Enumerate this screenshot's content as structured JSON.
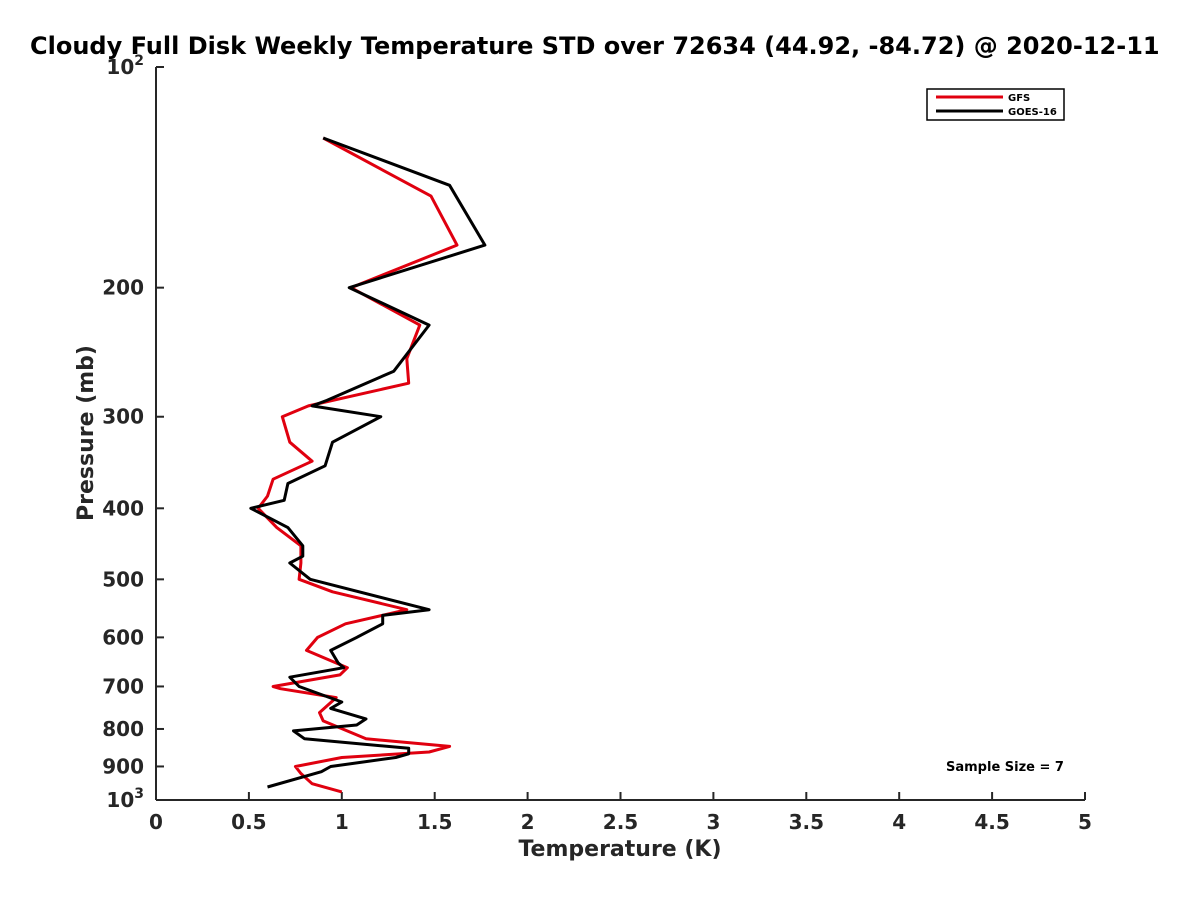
{
  "chart_data": {
    "type": "line",
    "title": "Cloudy Full Disk Weekly Temperature STD over 72634 (44.92, -84.72) @ 2020-12-11",
    "xlabel": "Temperature (K)",
    "ylabel": "Pressure (mb)",
    "xlim": [
      0,
      5
    ],
    "ylim": [
      100,
      1000
    ],
    "y_scale": "log",
    "y_reversed": true,
    "x_ticks": [
      "0",
      "0.5",
      "1",
      "1.5",
      "2",
      "2.5",
      "3",
      "3.5",
      "4",
      "4.5",
      "5"
    ],
    "y_ticks": [
      {
        "value": 100,
        "base": "10",
        "exp": "2"
      },
      {
        "value": 200,
        "label": "200"
      },
      {
        "value": 300,
        "label": "300"
      },
      {
        "value": 400,
        "label": "400"
      },
      {
        "value": 500,
        "label": "500"
      },
      {
        "value": 600,
        "label": "600"
      },
      {
        "value": 700,
        "label": "700"
      },
      {
        "value": 800,
        "label": "800"
      },
      {
        "value": 900,
        "label": "900"
      },
      {
        "value": 1000,
        "base": "10",
        "exp": "3"
      }
    ],
    "legend": {
      "position": "top-right",
      "entries": [
        "GFS",
        "GOES-16"
      ]
    },
    "annotation": "Sample Size = 7",
    "grid": false,
    "series": [
      {
        "name": "GFS",
        "color": "#e0000f",
        "points": [
          [
            0.9,
            125
          ],
          [
            1.48,
            150
          ],
          [
            1.62,
            175
          ],
          [
            1.05,
            200
          ],
          [
            1.42,
            225
          ],
          [
            1.35,
            250
          ],
          [
            1.36,
            270
          ],
          [
            0.82,
            290
          ],
          [
            0.68,
            300
          ],
          [
            0.72,
            325
          ],
          [
            0.84,
            345
          ],
          [
            0.63,
            365
          ],
          [
            0.6,
            385
          ],
          [
            0.55,
            400
          ],
          [
            0.65,
            425
          ],
          [
            0.78,
            450
          ],
          [
            0.78,
            475
          ],
          [
            0.77,
            500
          ],
          [
            0.95,
            520
          ],
          [
            1.35,
            550
          ],
          [
            1.02,
            575
          ],
          [
            0.87,
            600
          ],
          [
            0.81,
            625
          ],
          [
            1.03,
            660
          ],
          [
            0.99,
            675
          ],
          [
            0.63,
            700
          ],
          [
            0.67,
            705
          ],
          [
            0.97,
            725
          ],
          [
            0.88,
            760
          ],
          [
            0.9,
            780
          ],
          [
            1.13,
            825
          ],
          [
            1.58,
            845
          ],
          [
            1.47,
            860
          ],
          [
            1.0,
            875
          ],
          [
            0.75,
            900
          ],
          [
            0.78,
            920
          ],
          [
            0.84,
            950
          ],
          [
            1.0,
            975
          ]
        ]
      },
      {
        "name": "GOES-16",
        "color": "#000000",
        "points": [
          [
            0.9,
            125
          ],
          [
            1.58,
            145
          ],
          [
            1.77,
            175
          ],
          [
            1.04,
            200
          ],
          [
            1.47,
            225
          ],
          [
            1.28,
            260
          ],
          [
            0.92,
            285
          ],
          [
            0.84,
            290
          ],
          [
            1.21,
            300
          ],
          [
            0.95,
            325
          ],
          [
            0.91,
            350
          ],
          [
            0.71,
            370
          ],
          [
            0.69,
            390
          ],
          [
            0.51,
            400
          ],
          [
            0.71,
            425
          ],
          [
            0.79,
            450
          ],
          [
            0.79,
            465
          ],
          [
            0.72,
            475
          ],
          [
            0.83,
            500
          ],
          [
            1.47,
            550
          ],
          [
            1.22,
            560
          ],
          [
            1.22,
            575
          ],
          [
            1.08,
            600
          ],
          [
            0.94,
            625
          ],
          [
            0.98,
            650
          ],
          [
            1.01,
            660
          ],
          [
            0.72,
            680
          ],
          [
            0.77,
            700
          ],
          [
            1.0,
            735
          ],
          [
            0.94,
            750
          ],
          [
            1.13,
            775
          ],
          [
            1.08,
            790
          ],
          [
            0.74,
            805
          ],
          [
            0.8,
            825
          ],
          [
            1.36,
            850
          ],
          [
            1.36,
            865
          ],
          [
            1.29,
            875
          ],
          [
            0.94,
            900
          ],
          [
            0.89,
            915
          ],
          [
            0.6,
            960
          ]
        ]
      }
    ]
  }
}
